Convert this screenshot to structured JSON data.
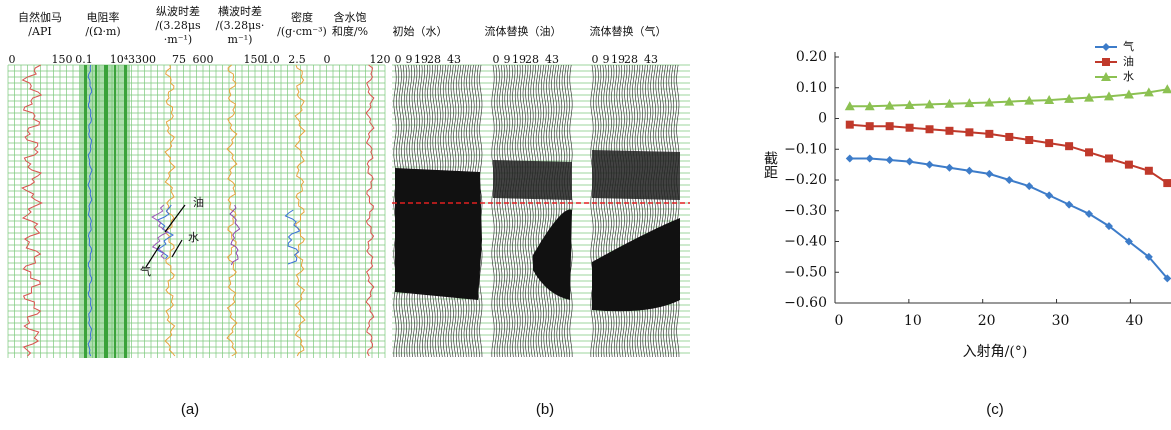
{
  "panel_a": {
    "headers": [
      [
        "自然伽马",
        "/API"
      ],
      [
        "电阻率",
        "/(Ω·m)"
      ],
      [
        "纵波时差",
        "/(3.28μs",
        "·m⁻¹)"
      ],
      [
        "横波时差",
        "/(3.28μs·",
        "m⁻¹)"
      ],
      [
        "密度",
        "/(g·cm⁻³)"
      ],
      [
        "含水饱",
        "和度/%"
      ]
    ],
    "scales": [
      "0",
      "150",
      "0.1",
      "10⁴",
      "3300",
      "75",
      "600",
      "150",
      "1.0",
      "2.5",
      "0",
      "120"
    ],
    "labels": [
      "油",
      "水",
      "气"
    ]
  },
  "panel_b": {
    "titles": [
      "初始（水）",
      "流体替换（油）",
      "流体替换（气）"
    ],
    "offsets": [
      "0",
      "9",
      "19",
      "28",
      "43"
    ]
  },
  "captions": [
    "(a)",
    "(b)",
    "(c)"
  ],
  "chart_data": {
    "type": "line",
    "x_label": "入射角/(°)",
    "y_label": "截距",
    "x": [
      2,
      4.7,
      7.4,
      10.1,
      12.8,
      15.5,
      18.2,
      20.9,
      23.6,
      26.3,
      29,
      31.7,
      34.4,
      37.1,
      39.8,
      42.5,
      45
    ],
    "series": [
      {
        "name": "气",
        "color": "#3d7cc9",
        "marker": "diamond",
        "values": [
          -0.13,
          -0.13,
          -0.135,
          -0.14,
          -0.15,
          -0.16,
          -0.17,
          -0.18,
          -0.2,
          -0.22,
          -0.25,
          -0.28,
          -0.31,
          -0.35,
          -0.4,
          -0.45,
          -0.52
        ]
      },
      {
        "name": "油",
        "color": "#c0392b",
        "marker": "square",
        "values": [
          -0.02,
          -0.025,
          -0.025,
          -0.03,
          -0.035,
          -0.04,
          -0.045,
          -0.05,
          -0.06,
          -0.07,
          -0.08,
          -0.09,
          -0.11,
          -0.13,
          -0.15,
          -0.17,
          -0.21
        ]
      },
      {
        "name": "水",
        "color": "#8cc152",
        "marker": "triangle",
        "values": [
          0.04,
          0.04,
          0.042,
          0.044,
          0.046,
          0.048,
          0.05,
          0.052,
          0.055,
          0.058,
          0.06,
          0.064,
          0.068,
          0.072,
          0.078,
          0.085,
          0.095
        ]
      }
    ],
    "xlim": [
      0,
      45.5
    ],
    "ylim": [
      -0.6,
      0.2
    ],
    "xticks": [
      0,
      10,
      20,
      30,
      40
    ],
    "yticks": [
      {
        "value": 0.2,
        "label": "0.20"
      },
      {
        "value": 0.1,
        "label": "0.10"
      },
      0,
      {
        "value": -0.1,
        "label": "−0.10"
      },
      {
        "value": -0.2,
        "label": "−0.20"
      },
      {
        "value": -0.3,
        "label": "−0.30"
      },
      {
        "value": -0.4,
        "label": "−0.40"
      },
      {
        "value": -0.5,
        "label": "−0.50"
      },
      {
        "value": -0.6,
        "label": "−0.60"
      }
    ],
    "legend": "top-right"
  }
}
